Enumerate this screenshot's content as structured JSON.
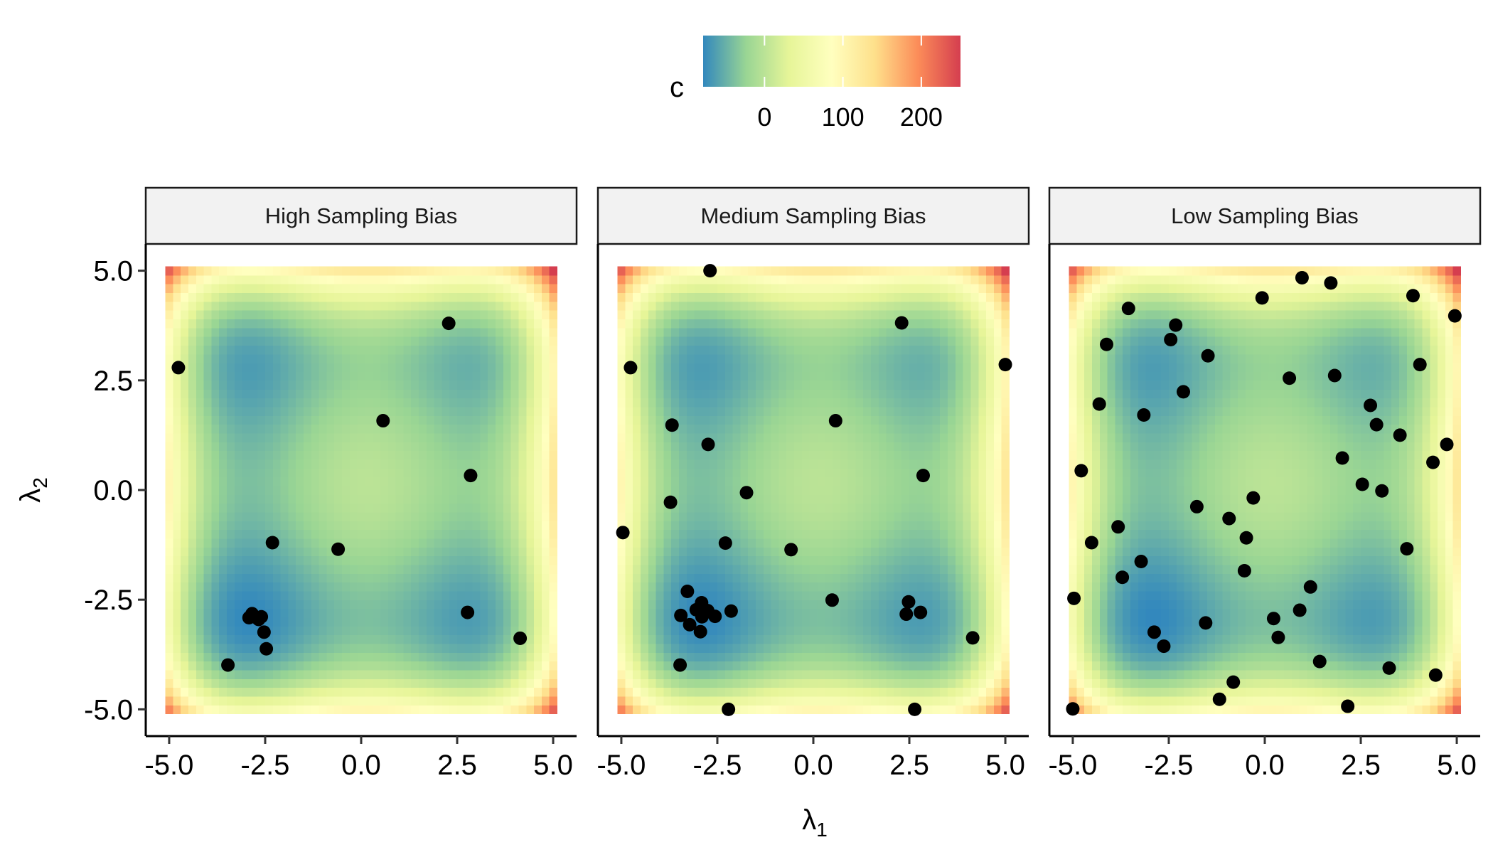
{
  "chart_data": {
    "type": "scatter",
    "background": "heatmap",
    "x_label": "λ1",
    "y_label": "λ2",
    "xlim": [
      -5,
      5
    ],
    "ylim": [
      -5,
      5
    ],
    "x_ticks": [
      "-5.0",
      "-2.5",
      "0.0",
      "2.5",
      "5.0"
    ],
    "y_ticks": [
      "5.0",
      "2.5",
      "0.0",
      "-2.5",
      "-5.0"
    ],
    "tick_values": [
      -5,
      -2.5,
      0,
      2.5,
      5
    ],
    "grid": false,
    "legend": {
      "title": "c",
      "position": "top",
      "ticks": [
        "0",
        "100",
        "200"
      ],
      "tick_values": [
        0,
        100,
        200
      ],
      "limits": [
        -78.3,
        250
      ],
      "palette": [
        "#3288bd",
        "#99d594",
        "#e6f598",
        "#ffffbf",
        "#fee08b",
        "#fc8d59",
        "#d53e4f"
      ]
    },
    "heatmap_grid": {
      "from": -5,
      "to": 5,
      "step": 0.2
    },
    "point_color": "#000000",
    "panels": [
      {
        "title": "High Sampling Bias",
        "points": [
          [
            -4.76,
            2.79
          ],
          [
            2.28,
            3.8
          ],
          [
            0.57,
            1.58
          ],
          [
            2.85,
            0.33
          ],
          [
            -2.31,
            -1.2
          ],
          [
            -0.6,
            -1.35
          ],
          [
            2.77,
            -2.79
          ],
          [
            4.14,
            -3.38
          ],
          [
            -3.47,
            -3.99
          ],
          [
            -2.92,
            -2.91
          ],
          [
            -2.84,
            -2.82
          ],
          [
            -2.6,
            -2.89
          ],
          [
            -2.67,
            -2.95
          ],
          [
            -2.53,
            -3.24
          ],
          [
            -2.47,
            -3.62
          ]
        ]
      },
      {
        "title": "Medium Sampling Bias",
        "points": [
          [
            -2.69,
            5.0
          ],
          [
            2.3,
            3.81
          ],
          [
            -4.76,
            2.79
          ],
          [
            5.0,
            2.86
          ],
          [
            -3.68,
            1.48
          ],
          [
            0.58,
            1.58
          ],
          [
            -2.74,
            1.04
          ],
          [
            2.86,
            0.33
          ],
          [
            -1.74,
            -0.06
          ],
          [
            -3.72,
            -0.28
          ],
          [
            -4.96,
            -0.97
          ],
          [
            -2.29,
            -1.21
          ],
          [
            -0.58,
            -1.36
          ],
          [
            -3.28,
            -2.31
          ],
          [
            0.49,
            -2.51
          ],
          [
            2.48,
            -2.55
          ],
          [
            2.42,
            -2.83
          ],
          [
            2.79,
            -2.79
          ],
          [
            -2.14,
            -2.76
          ],
          [
            -3.45,
            -2.86
          ],
          [
            -2.56,
            -2.88
          ],
          [
            -2.91,
            -2.57
          ],
          [
            -3.05,
            -2.73
          ],
          [
            -2.75,
            -2.75
          ],
          [
            -2.9,
            -2.89
          ],
          [
            -3.22,
            -3.07
          ],
          [
            -2.94,
            -3.23
          ],
          [
            4.15,
            -3.37
          ],
          [
            -3.47,
            -3.99
          ],
          [
            -2.21,
            -5.0
          ],
          [
            2.64,
            -5.0
          ]
        ]
      },
      {
        "title": "Low Sampling Bias",
        "points": [
          [
            0.97,
            4.84
          ],
          [
            1.72,
            4.72
          ],
          [
            -0.07,
            4.38
          ],
          [
            3.86,
            4.43
          ],
          [
            4.95,
            3.97
          ],
          [
            -3.55,
            4.14
          ],
          [
            -2.32,
            3.76
          ],
          [
            -4.12,
            3.32
          ],
          [
            -2.45,
            3.43
          ],
          [
            -1.48,
            3.06
          ],
          [
            4.04,
            2.86
          ],
          [
            0.64,
            2.55
          ],
          [
            1.82,
            2.61
          ],
          [
            -2.12,
            2.24
          ],
          [
            -4.31,
            1.96
          ],
          [
            -3.15,
            1.71
          ],
          [
            2.75,
            1.93
          ],
          [
            2.91,
            1.49
          ],
          [
            3.52,
            1.25
          ],
          [
            4.74,
            1.04
          ],
          [
            4.38,
            0.63
          ],
          [
            2.02,
            0.73
          ],
          [
            -4.78,
            0.44
          ],
          [
            2.54,
            0.13
          ],
          [
            3.05,
            -0.02
          ],
          [
            -0.3,
            -0.18
          ],
          [
            -1.77,
            -0.38
          ],
          [
            -0.93,
            -0.65
          ],
          [
            -3.82,
            -0.84
          ],
          [
            -0.48,
            -1.09
          ],
          [
            -4.51,
            -1.2
          ],
          [
            3.7,
            -1.34
          ],
          [
            -3.22,
            -1.63
          ],
          [
            -0.53,
            -1.84
          ],
          [
            -3.71,
            -1.99
          ],
          [
            -4.97,
            -2.47
          ],
          [
            1.19,
            -2.21
          ],
          [
            0.91,
            -2.74
          ],
          [
            0.23,
            -2.93
          ],
          [
            -1.54,
            -3.03
          ],
          [
            -2.88,
            -3.24
          ],
          [
            0.35,
            -3.36
          ],
          [
            -2.63,
            -3.56
          ],
          [
            1.43,
            -3.91
          ],
          [
            3.24,
            -4.06
          ],
          [
            4.45,
            -4.22
          ],
          [
            -0.82,
            -4.38
          ],
          [
            -1.18,
            -4.77
          ],
          [
            2.16,
            -4.93
          ],
          [
            -5.0,
            -4.99
          ]
        ]
      }
    ]
  }
}
